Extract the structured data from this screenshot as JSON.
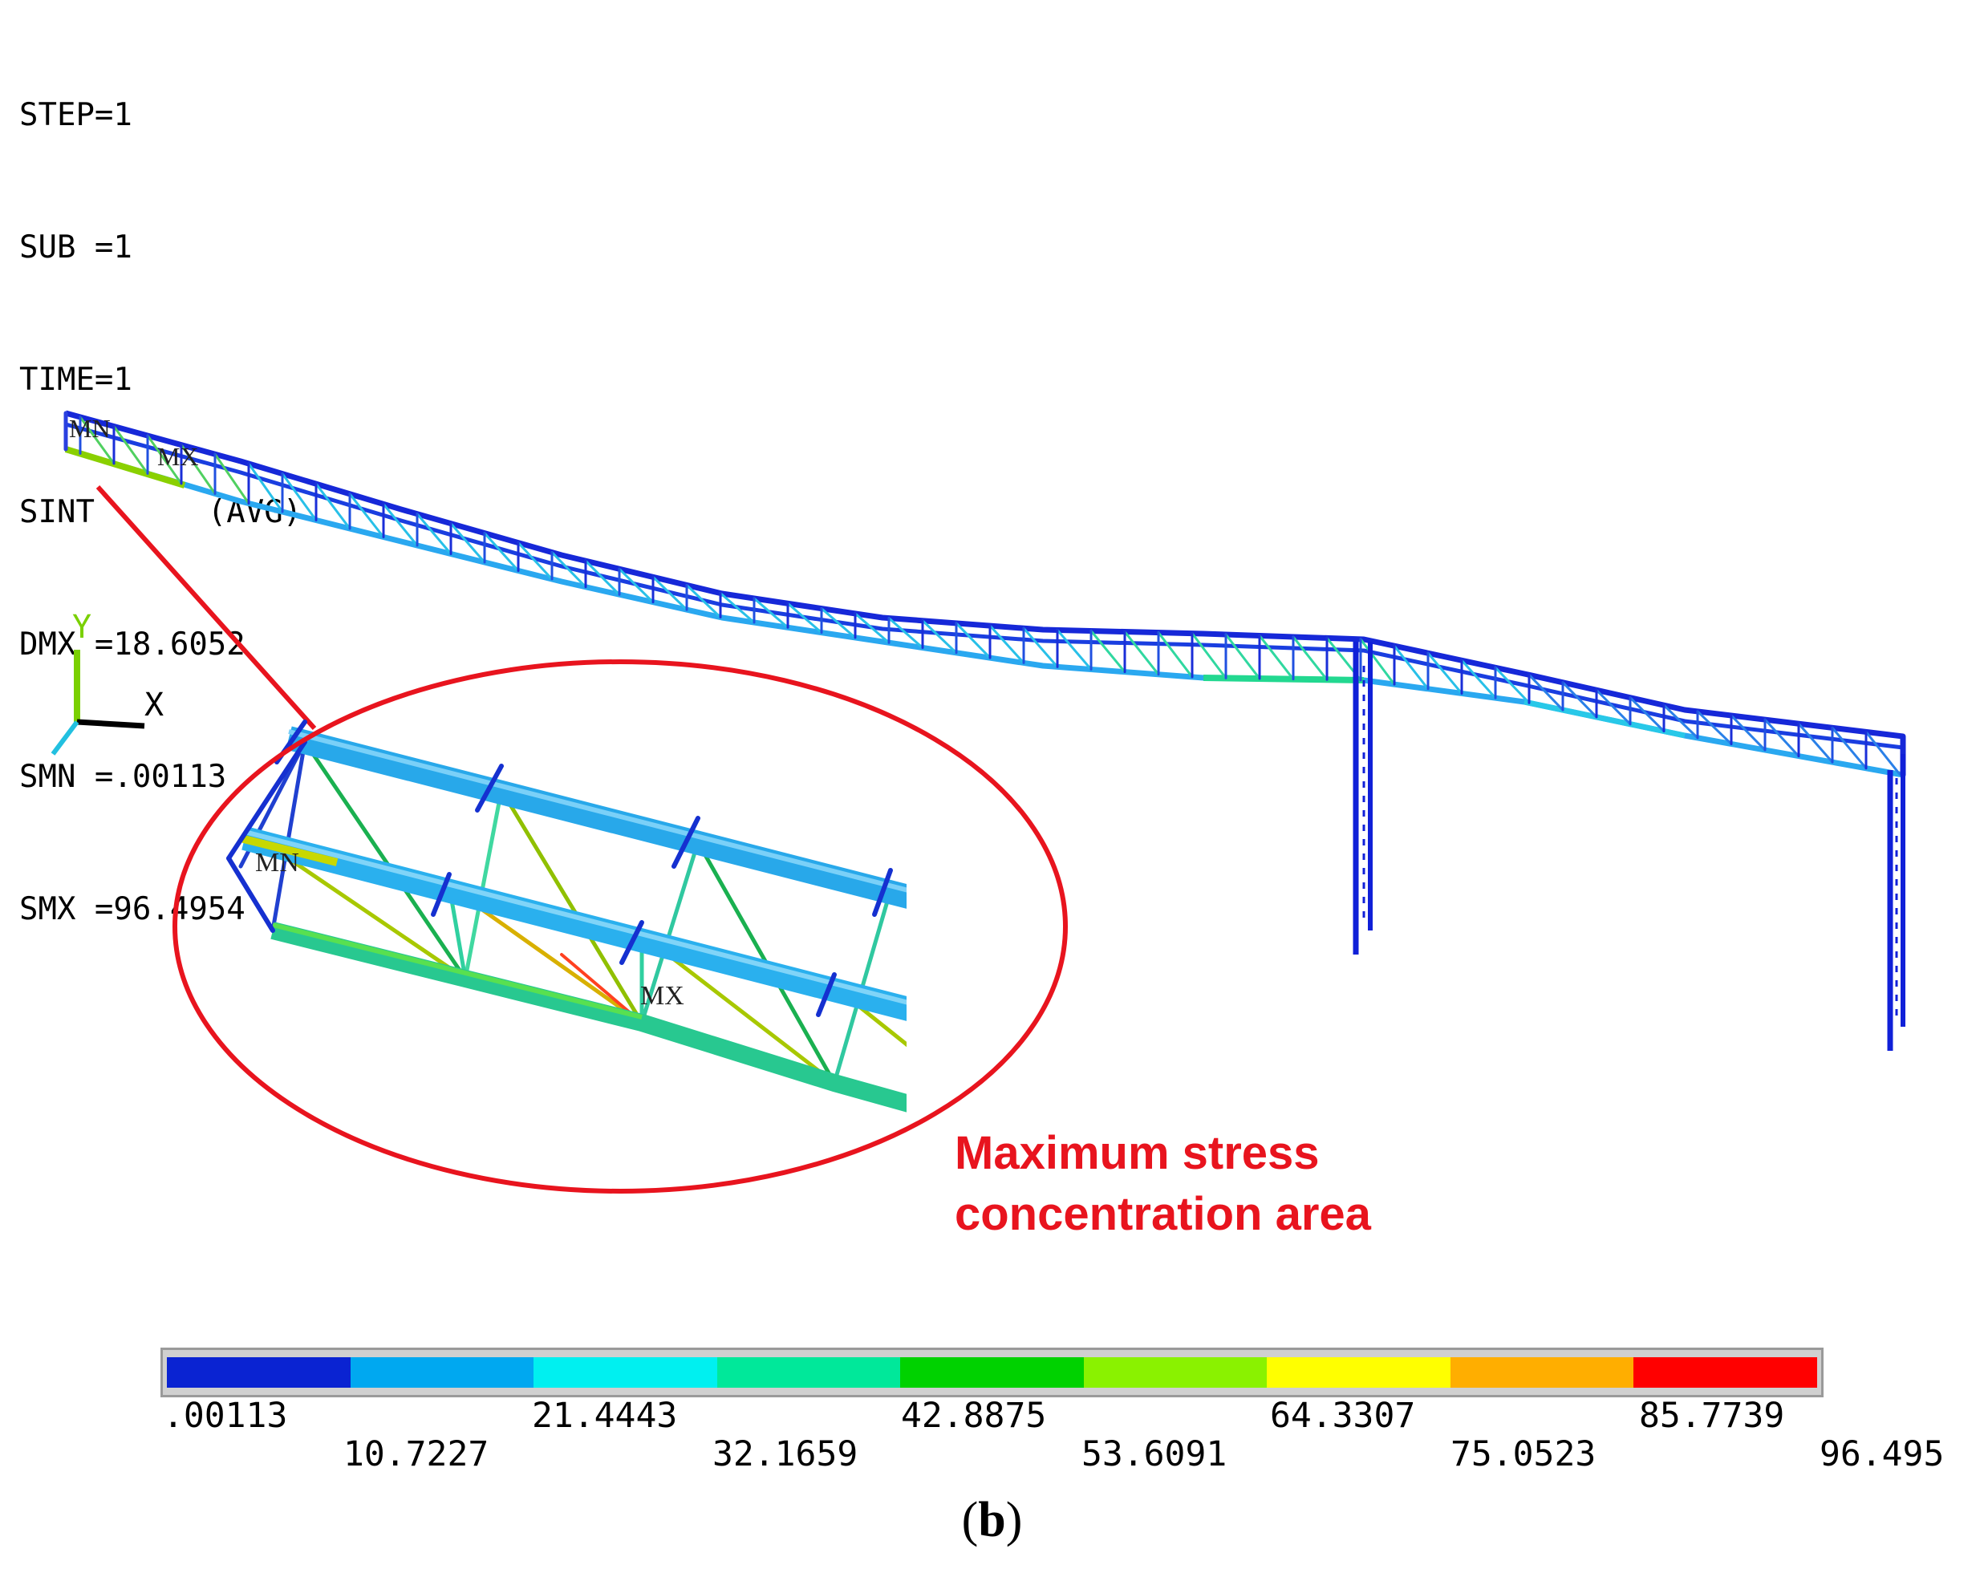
{
  "info_lines": [
    "STEP=1",
    "SUB =1",
    "TIME=1",
    "SINT      (AVG)",
    "DMX =18.6052",
    "SMN =.00113",
    "SMX =96.4954"
  ],
  "axis_triad": {
    "y_label": "Y",
    "x_label": "X"
  },
  "markers": {
    "min": "MN",
    "max": "MX"
  },
  "annotation": {
    "line1": "Maximum stress",
    "line2": "concentration area",
    "color": "#e8141e"
  },
  "legend": {
    "colors": [
      "#0a23d2",
      "#00a8f0",
      "#00f0f0",
      "#00e89a",
      "#00d200",
      "#8af200",
      "#ffff00",
      "#ffae00",
      "#ff0000"
    ],
    "top_labels": [
      ".00113",
      "21.4443",
      "42.8875",
      "64.3307",
      "85.7739"
    ],
    "bottom_labels": [
      "10.7227",
      "32.1659",
      "53.6091",
      "75.0523",
      "96.495"
    ]
  },
  "caption": {
    "open": "(",
    "letter": "b",
    "close": ")"
  }
}
